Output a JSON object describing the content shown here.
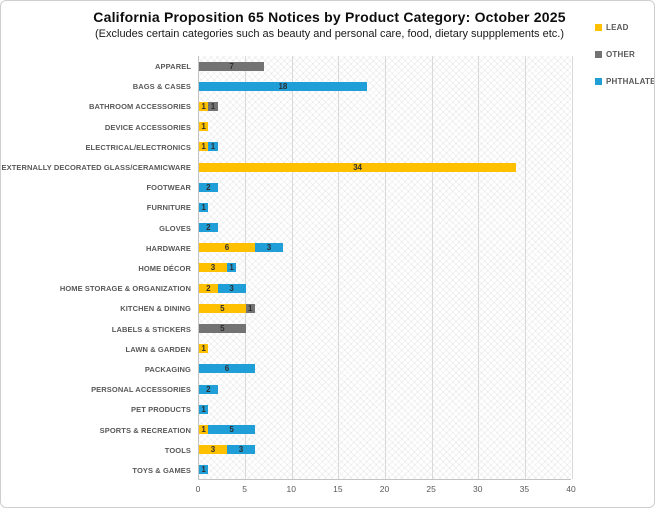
{
  "title": "California Proposition 65 Notices by Product Category: October 2025",
  "subtitle": "(Excludes certain categories such as beauty and personal care, food, dietary suppplements etc.)",
  "legend": [
    {
      "id": "lead",
      "label": "LEAD",
      "color": "#FFC000"
    },
    {
      "id": "other",
      "label": "OTHER",
      "color": "#737373"
    },
    {
      "id": "phthalates",
      "label": "PHTHALATES",
      "color": "#1F9ED8"
    }
  ],
  "chart_data": {
    "type": "bar",
    "orientation": "horizontal",
    "stacked": true,
    "title": "California Proposition 65 Notices by Product Category: October 2025",
    "subtitle": "(Excludes certain categories such as beauty and personal care, food, dietary suppplements etc.)",
    "categories": [
      "APPAREL",
      "BAGS & CASES",
      "BATHROOM ACCESSORIES",
      "DEVICE ACCESSORIES",
      "ELECTRICAL/ELECTRONICS",
      "EXTERNALLY DECORATED GLASS/CERAMICWARE",
      "FOOTWEAR",
      "FURNITURE",
      "GLOVES",
      "HARDWARE",
      "HOME DÉCOR",
      "HOME STORAGE & ORGANIZATION",
      "KITCHEN & DINING",
      "LABELS & STICKERS",
      "LAWN & GARDEN",
      "PACKAGING",
      "PERSONAL ACCESSORIES",
      "PET PRODUCTS",
      "SPORTS & RECREATION",
      "TOOLS",
      "TOYS & GAMES"
    ],
    "series": [
      {
        "name": "LEAD",
        "color": "#FFC000",
        "values": [
          0,
          0,
          1,
          1,
          1,
          34,
          0,
          0,
          0,
          6,
          3,
          2,
          5,
          0,
          1,
          0,
          0,
          0,
          1,
          3,
          0
        ]
      },
      {
        "name": "OTHER",
        "color": "#737373",
        "values": [
          7,
          0,
          1,
          0,
          0,
          0,
          0,
          0,
          0,
          0,
          0,
          0,
          1,
          5,
          0,
          0,
          0,
          0,
          0,
          0,
          0
        ]
      },
      {
        "name": "PHTHALATES",
        "color": "#1F9ED8",
        "values": [
          0,
          18,
          0,
          0,
          1,
          0,
          2,
          1,
          2,
          3,
          1,
          3,
          0,
          0,
          0,
          6,
          2,
          1,
          5,
          3,
          1
        ]
      }
    ],
    "xlim": [
      0,
      40
    ],
    "xticks": [
      0,
      5,
      10,
      15,
      20,
      25,
      30,
      35,
      40
    ],
    "grid": "vertical",
    "legend_position": "right",
    "data_labels": true
  }
}
